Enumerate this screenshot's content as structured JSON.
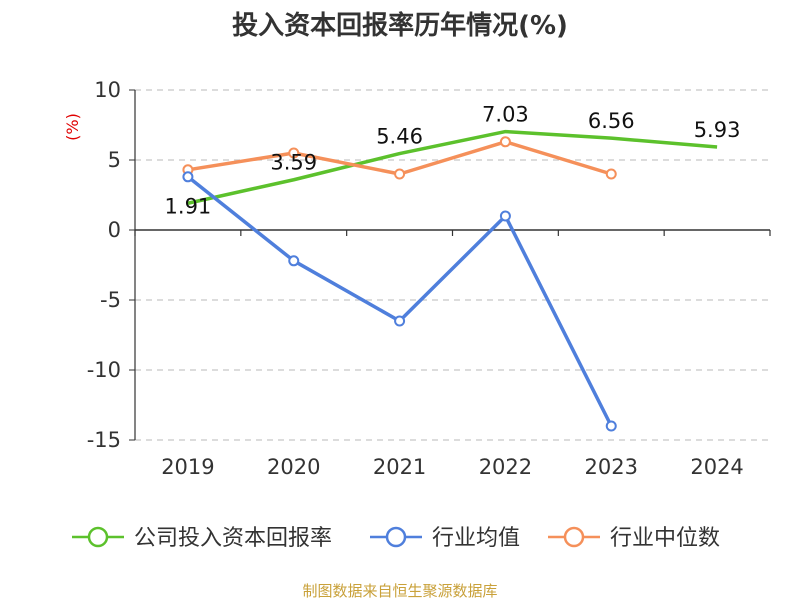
{
  "chart_data": {
    "type": "line",
    "title": "投入资本回报率历年情况(%)",
    "ylabel": "(%)",
    "categories": [
      "2019",
      "2020",
      "2021",
      "2022",
      "2023",
      "2024"
    ],
    "ylim": [
      -15,
      10
    ],
    "yticks": [
      10,
      5,
      0,
      -5,
      -10,
      -15
    ],
    "grid": true,
    "legend_position": "bottom",
    "series": [
      {
        "name": "公司投入资本回报率",
        "color": "#5cc12c",
        "values": [
          1.91,
          3.59,
          5.46,
          7.03,
          6.56,
          5.93
        ],
        "show_labels": true
      },
      {
        "name": "行业均值",
        "color": "#4f7fdc",
        "values": [
          3.8,
          -2.2,
          -6.5,
          1.0,
          -14.0,
          null
        ],
        "show_labels": false
      },
      {
        "name": "行业中位数",
        "color": "#f5905a",
        "values": [
          4.3,
          5.5,
          4.0,
          6.3,
          4.0,
          null
        ],
        "show_labels": false
      }
    ],
    "source": "制图数据来自恒生聚源数据库"
  }
}
